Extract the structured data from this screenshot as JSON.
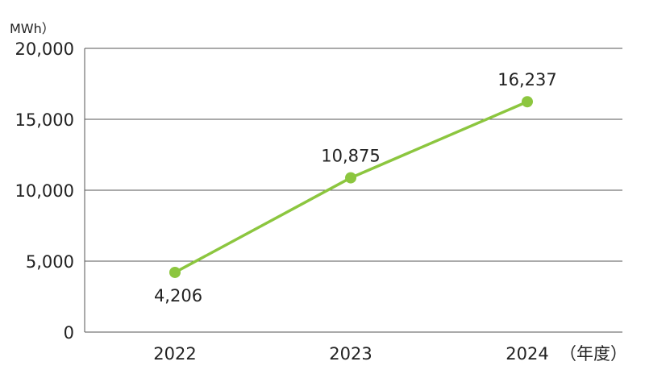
{
  "chart_data": {
    "type": "line",
    "title": "",
    "xlabel": "",
    "ylabel": "",
    "y_unit_label": "MWh）",
    "x_unit_label": "（年度）",
    "categories": [
      "2022",
      "2023",
      "2024"
    ],
    "series": [
      {
        "values": [
          4206,
          10875,
          16237
        ],
        "labels": [
          "4,206",
          "10,875",
          "16,237"
        ],
        "color": "#8cc63f"
      }
    ],
    "ylim": [
      0,
      20000
    ],
    "yticks": [
      0,
      5000,
      10000,
      15000,
      20000
    ],
    "ytick_labels": [
      "0",
      "5,000",
      "10,000",
      "15,000",
      "20,000"
    ],
    "grid": true,
    "grid_color": "#555555",
    "marker_color": "#8cc63f"
  }
}
